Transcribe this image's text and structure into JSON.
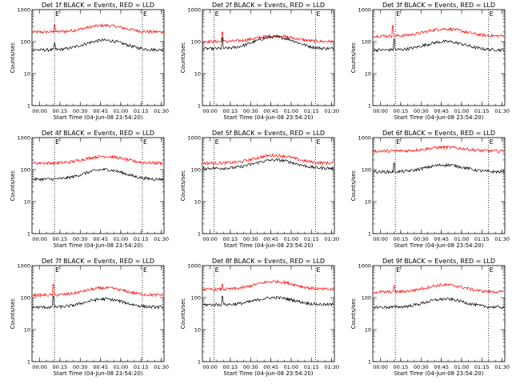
{
  "colors": {
    "events": "#000000",
    "lld": "#ff0000",
    "marker": "#000000",
    "background": "#ffffff"
  },
  "chart_data": [
    {
      "type": "line",
      "title": "Det 1f BLACK = Events, RED = LLD",
      "xlabel": "Start Time (04-Jun-08 23:54:20)",
      "ylabel": "Counts/sec",
      "yscale": "log",
      "ylim": [
        1,
        1000
      ],
      "xlim": [
        "23:54:20",
        "01:32:00"
      ],
      "x_ticks": [
        "00:00",
        "00:15",
        "00:30",
        "00:45",
        "01:00",
        "01:15",
        "01:30"
      ],
      "y_ticks": [
        "1",
        "10",
        "100",
        "1000"
      ],
      "vertical_markers": [
        "00:11",
        "01:16"
      ],
      "marker_label": "E",
      "series": [
        {
          "name": "BLACK = Events",
          "baseline": 55,
          "hump_peak": 110,
          "spike_at": "00:11",
          "spike_value": 90
        },
        {
          "name": "RED = LLD",
          "baseline": 200,
          "hump_peak": 320,
          "spike_at": "00:11",
          "spike_value": 330
        }
      ]
    },
    {
      "type": "line",
      "title": "Det 2f BLACK = Events, RED = LLD",
      "xlabel": "Start Time (04-Jun-08 23:54:20)",
      "ylabel": "Counts/sec",
      "yscale": "log",
      "ylim": [
        1,
        1000
      ],
      "xlim": [
        "23:54:20",
        "01:32:00"
      ],
      "x_ticks": [
        "00:00",
        "00:15",
        "00:30",
        "00:45",
        "01:00",
        "01:15",
        "01:30"
      ],
      "y_ticks": [
        "1",
        "10",
        "100",
        "1000"
      ],
      "vertical_markers": [
        "00:03",
        "01:18"
      ],
      "marker_label": "E",
      "series": [
        {
          "name": "BLACK = Events",
          "baseline": 60,
          "hump_peak": 140,
          "spike_at": "00:09",
          "spike_value": 130
        },
        {
          "name": "RED = LLD",
          "baseline": 100,
          "hump_peak": 150,
          "spike_at": "00:09",
          "spike_value": 200
        }
      ]
    },
    {
      "type": "line",
      "title": "Det 3f BLACK = Events, RED = LLD",
      "xlabel": "Start Time (04-Jun-08 23:54:20)",
      "ylabel": "Counts/sec",
      "yscale": "log",
      "ylim": [
        1,
        1000
      ],
      "xlim": [
        "23:54:20",
        "01:32:00"
      ],
      "x_ticks": [
        "00:00",
        "00:15",
        "00:30",
        "00:45",
        "01:00",
        "01:15",
        "01:30"
      ],
      "y_ticks": [
        "1",
        "10",
        "100",
        "1000"
      ],
      "vertical_markers": [
        "00:11",
        "01:20"
      ],
      "marker_label": "E",
      "series": [
        {
          "name": "BLACK = Events",
          "baseline": 55,
          "hump_peak": 100,
          "spike_at": "00:10",
          "spike_value": 120
        },
        {
          "name": "RED = LLD",
          "baseline": 150,
          "hump_peak": 250,
          "spike_at": "00:09",
          "spike_value": 320
        }
      ]
    },
    {
      "type": "line",
      "title": "Det 4f BLACK = Events, RED = LLD",
      "xlabel": "Start Time (04-Jun-08 23:54:20)",
      "ylabel": "Counts/sec",
      "yscale": "log",
      "ylim": [
        1,
        1000
      ],
      "xlim": [
        "23:54:20",
        "01:32:00"
      ],
      "x_ticks": [
        "00:00",
        "00:15",
        "00:30",
        "00:45",
        "01:00",
        "01:15",
        "01:30"
      ],
      "y_ticks": [
        "1",
        "10",
        "100",
        "1000"
      ],
      "vertical_markers": [
        "00:11",
        "01:16"
      ],
      "marker_label": "E",
      "series": [
        {
          "name": "BLACK = Events",
          "baseline": 50,
          "hump_peak": 100,
          "spike_at": "",
          "spike_value": 0
        },
        {
          "name": "RED = LLD",
          "baseline": 160,
          "hump_peak": 260,
          "spike_at": "",
          "spike_value": 0
        }
      ]
    },
    {
      "type": "line",
      "title": "Det 5f BLACK = Events, RED = LLD",
      "xlabel": "Start Time (04-Jun-08 23:54:20)",
      "ylabel": "Counts/sec",
      "yscale": "log",
      "ylim": [
        1,
        1000
      ],
      "xlim": [
        "23:54:20",
        "01:32:00"
      ],
      "x_ticks": [
        "00:00",
        "00:15",
        "00:30",
        "00:45",
        "01:00",
        "01:15",
        "01:30"
      ],
      "y_ticks": [
        "1",
        "10",
        "100",
        "1000"
      ],
      "vertical_markers": [
        "00:03",
        "01:18"
      ],
      "marker_label": "E",
      "series": [
        {
          "name": "BLACK = Events",
          "baseline": 110,
          "hump_peak": 200,
          "spike_at": "",
          "spike_value": 0
        },
        {
          "name": "RED = LLD",
          "baseline": 160,
          "hump_peak": 280,
          "spike_at": "",
          "spike_value": 0
        }
      ]
    },
    {
      "type": "line",
      "title": "Det 6f BLACK = Events, RED = LLD",
      "xlabel": "Start Time (04-Jun-08 23:54:20)",
      "ylabel": "Counts/sec",
      "yscale": "log",
      "ylim": [
        1,
        1000
      ],
      "xlim": [
        "23:54:20",
        "01:32:00"
      ],
      "x_ticks": [
        "00:00",
        "00:15",
        "00:30",
        "00:45",
        "01:00",
        "01:15",
        "01:30"
      ],
      "y_ticks": [
        "1",
        "10",
        "100",
        "1000"
      ],
      "vertical_markers": [
        "00:11",
        "01:20"
      ],
      "marker_label": "E",
      "series": [
        {
          "name": "BLACK = Events",
          "baseline": 85,
          "hump_peak": 140,
          "spike_at": "00:10",
          "spike_value": 160
        },
        {
          "name": "RED = LLD",
          "baseline": 380,
          "hump_peak": 500,
          "spike_at": "",
          "spike_value": 0
        }
      ]
    },
    {
      "type": "line",
      "title": "Det 7f BLACK = Events, RED = LLD",
      "xlabel": "Start Time (04-Jun-08 23:54:20)",
      "ylabel": "Counts/sec",
      "yscale": "log",
      "ylim": [
        1,
        1000
      ],
      "xlim": [
        "23:54:20",
        "01:32:00"
      ],
      "x_ticks": [
        "00:00",
        "00:15",
        "00:30",
        "00:45",
        "01:00",
        "01:15",
        "01:30"
      ],
      "y_ticks": [
        "1",
        "10",
        "100",
        "1000"
      ],
      "vertical_markers": [
        "00:11",
        "01:16"
      ],
      "marker_label": "E",
      "series": [
        {
          "name": "BLACK = Events",
          "baseline": 50,
          "hump_peak": 90,
          "spike_at": "00:10",
          "spike_value": 110
        },
        {
          "name": "RED = LLD",
          "baseline": 120,
          "hump_peak": 200,
          "spike_at": "00:10",
          "spike_value": 260
        }
      ]
    },
    {
      "type": "line",
      "title": "Det 8f BLACK = Events, RED = LLD",
      "xlabel": "Start Time (04-Jun-08 23:54:20)",
      "ylabel": "Counts/sec",
      "yscale": "log",
      "ylim": [
        1,
        1000
      ],
      "xlim": [
        "23:54:20",
        "01:32:00"
      ],
      "x_ticks": [
        "00:00",
        "00:15",
        "00:30",
        "00:45",
        "01:00",
        "01:15",
        "01:30"
      ],
      "y_ticks": [
        "1",
        "10",
        "100",
        "1000"
      ],
      "vertical_markers": [
        "00:03",
        "01:18"
      ],
      "marker_label": "E",
      "series": [
        {
          "name": "BLACK = Events",
          "baseline": 60,
          "hump_peak": 100,
          "spike_at": "00:09",
          "spike_value": 110
        },
        {
          "name": "RED = LLD",
          "baseline": 180,
          "hump_peak": 320,
          "spike_at": "00:09",
          "spike_value": 260
        }
      ]
    },
    {
      "type": "line",
      "title": "Det 9f BLACK = Events, RED = LLD",
      "xlabel": "Start Time (04-Jun-08 23:54:20)",
      "ylabel": "Counts/sec",
      "yscale": "log",
      "ylim": [
        1,
        1000
      ],
      "xlim": [
        "23:54:20",
        "01:32:00"
      ],
      "x_ticks": [
        "00:00",
        "00:15",
        "00:30",
        "00:45",
        "01:00",
        "01:15",
        "01:30"
      ],
      "y_ticks": [
        "1",
        "10",
        "100",
        "1000"
      ],
      "vertical_markers": [
        "00:11",
        "01:20"
      ],
      "marker_label": "E",
      "series": [
        {
          "name": "BLACK = Events",
          "baseline": 50,
          "hump_peak": 90,
          "spike_at": "",
          "spike_value": 0
        },
        {
          "name": "RED = LLD",
          "baseline": 150,
          "hump_peak": 250,
          "spike_at": "00:10",
          "spike_value": 240
        }
      ]
    }
  ]
}
